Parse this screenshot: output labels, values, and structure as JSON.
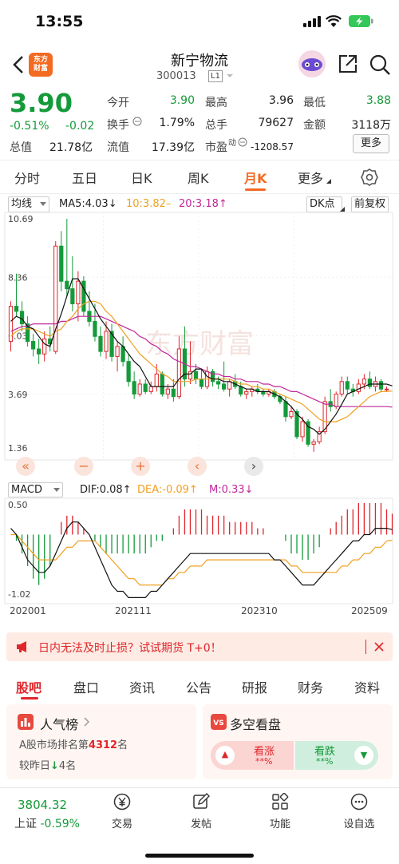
{
  "status_bar": {
    "time": "13:55"
  },
  "header": {
    "logo_line1": "东方",
    "logo_line2": "财富",
    "stock_name": "新宁物流",
    "stock_code": "300013",
    "level_badge": "L1"
  },
  "quote": {
    "price": "3.90",
    "change_pct": "-0.51%",
    "change_abs": "-0.02",
    "open_label": "今开",
    "open_value": "3.90",
    "high_label": "最高",
    "high_value": "3.96",
    "low_label": "最低",
    "low_value": "3.88",
    "turnover_label": "换手",
    "turnover_value": "1.79%",
    "volume_label": "总手",
    "volume_value": "79627",
    "amount_label": "金额",
    "amount_value": "3118万",
    "mktcap_label": "总值",
    "mktcap_value": "21.78亿",
    "float_label": "流值",
    "float_value": "17.39亿",
    "pe_label": "市盈",
    "pe_sup": "动",
    "pe_value": "-1208.57",
    "more_label": "更多"
  },
  "period_tabs": [
    "分时",
    "五日",
    "日K",
    "周K",
    "月K",
    "更多"
  ],
  "active_period": "月K",
  "chart_toolbar": {
    "indicator": "均线",
    "ma5": "MA5:4.03",
    "ma10": "10:3.82",
    "ma20": "20:3.18",
    "dk_label": "DK点",
    "adjust_label": "前复权"
  },
  "kline": {
    "y_labels": [
      "10.69",
      "8.36",
      "6.03",
      "3.69",
      "1.36"
    ],
    "watermark": "东方财富"
  },
  "macd_toolbar": {
    "indicator": "MACD",
    "dif": "DIF:0.08",
    "dea": "DEA:-0.09",
    "m": "M:0.33",
    "y_top": "0.50",
    "y_bottom": "-1.02"
  },
  "x_labels": [
    "202001",
    "202111",
    "202310",
    "202509"
  ],
  "colors": {
    "up": "#e0262b",
    "down": "#149a3a",
    "accent": "#f36a21",
    "ma5": "#111111",
    "ma10": "#f0a020",
    "ma20": "#c0279a"
  },
  "chart_data": {
    "type": "candlestick",
    "period": "monthly",
    "y_range": [
      1.36,
      10.69
    ],
    "x_tick_labels": [
      "202001",
      "202111",
      "202310",
      "202509"
    ],
    "candles": [
      {
        "o": 5.8,
        "h": 7.4,
        "l": 5.4,
        "c": 7.2
      },
      {
        "o": 7.2,
        "h": 8.5,
        "l": 6.8,
        "c": 7.0
      },
      {
        "o": 7.0,
        "h": 7.4,
        "l": 6.2,
        "c": 6.5
      },
      {
        "o": 6.5,
        "h": 6.8,
        "l": 5.6,
        "c": 5.8
      },
      {
        "o": 5.8,
        "h": 6.1,
        "l": 5.2,
        "c": 5.5
      },
      {
        "o": 5.5,
        "h": 5.9,
        "l": 4.9,
        "c": 5.3
      },
      {
        "o": 5.3,
        "h": 6.2,
        "l": 5.0,
        "c": 5.9
      },
      {
        "o": 5.9,
        "h": 6.4,
        "l": 5.4,
        "c": 5.7
      },
      {
        "o": 5.4,
        "h": 9.8,
        "l": 5.3,
        "c": 9.6
      },
      {
        "o": 9.6,
        "h": 10.2,
        "l": 7.8,
        "c": 8.2
      },
      {
        "o": 8.2,
        "h": 10.69,
        "l": 7.6,
        "c": 7.9
      },
      {
        "o": 7.9,
        "h": 9.2,
        "l": 7.0,
        "c": 7.3
      },
      {
        "o": 7.3,
        "h": 8.6,
        "l": 6.6,
        "c": 8.2
      },
      {
        "o": 8.2,
        "h": 8.4,
        "l": 6.8,
        "c": 7.0
      },
      {
        "o": 7.0,
        "h": 7.8,
        "l": 6.4,
        "c": 6.6
      },
      {
        "o": 6.6,
        "h": 7.3,
        "l": 5.8,
        "c": 6.0
      },
      {
        "o": 6.0,
        "h": 6.4,
        "l": 5.2,
        "c": 5.4
      },
      {
        "o": 5.4,
        "h": 6.6,
        "l": 5.1,
        "c": 6.2
      },
      {
        "o": 6.2,
        "h": 6.5,
        "l": 5.0,
        "c": 5.2
      },
      {
        "o": 5.2,
        "h": 5.8,
        "l": 4.6,
        "c": 5.6
      },
      {
        "o": 5.6,
        "h": 6.0,
        "l": 4.8,
        "c": 5.0
      },
      {
        "o": 5.0,
        "h": 5.3,
        "l": 4.0,
        "c": 4.2
      },
      {
        "o": 4.2,
        "h": 4.6,
        "l": 3.5,
        "c": 3.7
      },
      {
        "o": 3.7,
        "h": 4.3,
        "l": 3.6,
        "c": 4.1
      },
      {
        "o": 4.1,
        "h": 4.3,
        "l": 3.7,
        "c": 3.8
      },
      {
        "o": 3.8,
        "h": 4.2,
        "l": 3.7,
        "c": 4.0
      },
      {
        "o": 4.0,
        "h": 4.9,
        "l": 3.8,
        "c": 4.5
      },
      {
        "o": 4.5,
        "h": 4.6,
        "l": 3.6,
        "c": 3.7
      },
      {
        "o": 3.7,
        "h": 4.1,
        "l": 3.5,
        "c": 3.9
      },
      {
        "o": 3.9,
        "h": 4.3,
        "l": 3.4,
        "c": 3.6
      },
      {
        "o": 3.6,
        "h": 6.0,
        "l": 3.5,
        "c": 5.5
      },
      {
        "o": 5.5,
        "h": 6.4,
        "l": 4.0,
        "c": 4.3
      },
      {
        "o": 4.3,
        "h": 5.8,
        "l": 4.1,
        "c": 4.6
      },
      {
        "o": 4.6,
        "h": 4.9,
        "l": 4.1,
        "c": 4.3
      },
      {
        "o": 4.3,
        "h": 4.7,
        "l": 3.9,
        "c": 4.0
      },
      {
        "o": 4.0,
        "h": 4.8,
        "l": 3.9,
        "c": 4.6
      },
      {
        "o": 4.6,
        "h": 4.7,
        "l": 4.0,
        "c": 4.2
      },
      {
        "o": 4.2,
        "h": 4.4,
        "l": 3.9,
        "c": 4.1
      },
      {
        "o": 4.1,
        "h": 5.0,
        "l": 3.8,
        "c": 3.9
      },
      {
        "o": 3.9,
        "h": 4.3,
        "l": 3.6,
        "c": 4.2
      },
      {
        "o": 4.2,
        "h": 4.5,
        "l": 3.9,
        "c": 4.0
      },
      {
        "o": 4.0,
        "h": 4.2,
        "l": 3.6,
        "c": 3.7
      },
      {
        "o": 3.7,
        "h": 3.9,
        "l": 3.5,
        "c": 3.8
      },
      {
        "o": 3.8,
        "h": 4.0,
        "l": 3.6,
        "c": 3.9
      },
      {
        "o": 3.9,
        "h": 4.1,
        "l": 3.7,
        "c": 3.8
      },
      {
        "o": 3.8,
        "h": 3.9,
        "l": 3.6,
        "c": 3.7
      },
      {
        "o": 3.7,
        "h": 3.9,
        "l": 3.6,
        "c": 3.8
      },
      {
        "o": 3.8,
        "h": 3.9,
        "l": 3.5,
        "c": 3.6
      },
      {
        "o": 3.6,
        "h": 3.7,
        "l": 3.3,
        "c": 3.4
      },
      {
        "o": 3.4,
        "h": 3.6,
        "l": 2.6,
        "c": 2.8
      },
      {
        "o": 2.8,
        "h": 3.2,
        "l": 2.7,
        "c": 3.0
      },
      {
        "o": 3.0,
        "h": 3.1,
        "l": 1.9,
        "c": 2.0
      },
      {
        "o": 2.0,
        "h": 2.8,
        "l": 1.8,
        "c": 2.6
      },
      {
        "o": 2.6,
        "h": 2.7,
        "l": 1.6,
        "c": 1.7
      },
      {
        "o": 1.7,
        "h": 1.9,
        "l": 1.4,
        "c": 1.8
      },
      {
        "o": 1.8,
        "h": 2.4,
        "l": 1.7,
        "c": 2.2
      },
      {
        "o": 2.2,
        "h": 3.6,
        "l": 2.1,
        "c": 3.4
      },
      {
        "o": 3.4,
        "h": 3.9,
        "l": 3.0,
        "c": 3.2
      },
      {
        "o": 3.2,
        "h": 3.8,
        "l": 3.1,
        "c": 3.7
      },
      {
        "o": 3.7,
        "h": 4.4,
        "l": 3.6,
        "c": 4.2
      },
      {
        "o": 4.2,
        "h": 4.4,
        "l": 3.7,
        "c": 3.9
      },
      {
        "o": 3.9,
        "h": 4.1,
        "l": 3.6,
        "c": 3.8
      },
      {
        "o": 3.8,
        "h": 4.3,
        "l": 3.7,
        "c": 4.1
      },
      {
        "o": 4.1,
        "h": 4.5,
        "l": 3.9,
        "c": 4.3
      },
      {
        "o": 4.3,
        "h": 4.6,
        "l": 3.9,
        "c": 4.0
      },
      {
        "o": 4.0,
        "h": 4.4,
        "l": 3.8,
        "c": 4.2
      },
      {
        "o": 4.2,
        "h": 4.3,
        "l": 3.8,
        "c": 3.9
      },
      {
        "o": 3.9,
        "h": 4.0,
        "l": 3.8,
        "c": 3.9
      }
    ],
    "ma5": [
      6.6,
      6.8,
      6.7,
      6.4,
      6.3,
      6.0,
      5.7,
      5.6,
      6.3,
      6.9,
      7.6,
      8.3,
      8.3,
      7.9,
      7.5,
      7.1,
      6.7,
      6.4,
      6.1,
      5.8,
      5.6,
      5.3,
      5.0,
      4.8,
      4.4,
      4.0,
      4.0,
      4.0,
      4.0,
      4.0,
      4.3,
      4.5,
      4.5,
      4.7,
      4.7,
      4.4,
      4.3,
      4.3,
      4.2,
      4.2,
      4.1,
      4.0,
      3.9,
      3.9,
      3.8,
      3.8,
      3.8,
      3.7,
      3.6,
      3.4,
      3.2,
      2.9,
      2.7,
      2.4,
      2.3,
      2.1,
      2.3,
      2.6,
      2.9,
      3.3,
      3.7,
      3.8,
      3.9,
      4.0,
      4.1,
      4.1,
      4.1,
      4.1,
      4.03
    ],
    "ma10": [
      6.0,
      6.2,
      6.3,
      6.3,
      6.3,
      6.2,
      6.1,
      6.0,
      6.2,
      6.3,
      6.6,
      6.8,
      7.1,
      7.3,
      7.4,
      7.4,
      7.3,
      7.0,
      6.8,
      6.5,
      6.2,
      5.9,
      5.6,
      5.3,
      5.1,
      4.9,
      4.7,
      4.5,
      4.4,
      4.2,
      4.2,
      4.2,
      4.2,
      4.3,
      4.3,
      4.3,
      4.3,
      4.3,
      4.3,
      4.3,
      4.2,
      4.1,
      4.1,
      4.0,
      4.0,
      3.9,
      3.9,
      3.8,
      3.7,
      3.6,
      3.5,
      3.4,
      3.3,
      3.1,
      2.9,
      2.7,
      2.6,
      2.6,
      2.6,
      2.7,
      2.8,
      3.0,
      3.2,
      3.4,
      3.6,
      3.7,
      3.8,
      3.8,
      3.82
    ],
    "ma20": [
      6.2,
      6.3,
      6.4,
      6.4,
      6.5,
      6.5,
      6.5,
      6.5,
      6.5,
      6.6,
      6.6,
      6.7,
      6.8,
      6.8,
      6.8,
      6.8,
      6.8,
      6.7,
      6.6,
      6.5,
      6.4,
      6.3,
      6.2,
      6.0,
      5.9,
      5.7,
      5.6,
      5.4,
      5.3,
      5.1,
      5.0,
      4.9,
      4.8,
      4.8,
      4.7,
      4.6,
      4.5,
      4.5,
      4.4,
      4.4,
      4.3,
      4.3,
      4.2,
      4.2,
      4.2,
      4.1,
      4.1,
      4.0,
      4.0,
      3.9,
      3.8,
      3.8,
      3.7,
      3.6,
      3.5,
      3.4,
      3.3,
      3.3,
      3.2,
      3.2,
      3.2,
      3.2,
      3.2,
      3.2,
      3.2,
      3.2,
      3.2,
      3.2,
      3.18
    ],
    "macd_range": [
      -1.02,
      0.5
    ],
    "macd_hist": [
      0.0,
      -0.1,
      -0.3,
      -0.5,
      -0.7,
      -0.8,
      -0.7,
      -0.5,
      0.0,
      0.2,
      0.3,
      0.3,
      0.2,
      0.1,
      0.0,
      -0.1,
      -0.2,
      -0.3,
      -0.3,
      -0.3,
      -0.3,
      -0.3,
      -0.3,
      -0.3,
      -0.3,
      -0.2,
      -0.1,
      -0.1,
      0.0,
      0.1,
      0.3,
      0.4,
      0.4,
      0.4,
      0.4,
      0.3,
      0.3,
      0.3,
      0.3,
      0.2,
      0.2,
      0.2,
      0.2,
      0.2,
      0.1,
      0.1,
      0.0,
      0.0,
      0.0,
      -0.1,
      -0.3,
      -0.3,
      -0.4,
      -0.4,
      -0.3,
      -0.2,
      0.0,
      0.1,
      0.2,
      0.3,
      0.4,
      0.4,
      0.5,
      0.5,
      0.5,
      0.5,
      0.5,
      0.4,
      0.33
    ],
    "dif": [
      0.1,
      0.0,
      -0.2,
      -0.4,
      -0.5,
      -0.6,
      -0.6,
      -0.5,
      -0.3,
      -0.1,
      0.1,
      0.2,
      0.2,
      0.1,
      0.0,
      -0.2,
      -0.4,
      -0.6,
      -0.8,
      -0.9,
      -0.9,
      -1.0,
      -1.0,
      -1.0,
      -1.0,
      -0.9,
      -0.9,
      -0.8,
      -0.7,
      -0.6,
      -0.5,
      -0.4,
      -0.3,
      -0.3,
      -0.3,
      -0.3,
      -0.3,
      -0.3,
      -0.3,
      -0.3,
      -0.3,
      -0.3,
      -0.3,
      -0.3,
      -0.3,
      -0.3,
      -0.3,
      -0.4,
      -0.4,
      -0.5,
      -0.6,
      -0.7,
      -0.8,
      -0.8,
      -0.8,
      -0.7,
      -0.6,
      -0.5,
      -0.4,
      -0.3,
      -0.2,
      -0.1,
      -0.1,
      0.0,
      0.0,
      0.1,
      0.1,
      0.1,
      0.08
    ],
    "dea": [
      0.0,
      0.0,
      -0.1,
      -0.2,
      -0.3,
      -0.4,
      -0.4,
      -0.4,
      -0.4,
      -0.3,
      -0.2,
      -0.2,
      -0.1,
      -0.1,
      -0.1,
      -0.1,
      -0.2,
      -0.3,
      -0.4,
      -0.5,
      -0.6,
      -0.7,
      -0.7,
      -0.8,
      -0.8,
      -0.8,
      -0.8,
      -0.8,
      -0.7,
      -0.7,
      -0.6,
      -0.6,
      -0.5,
      -0.5,
      -0.5,
      -0.4,
      -0.4,
      -0.4,
      -0.4,
      -0.4,
      -0.4,
      -0.4,
      -0.4,
      -0.4,
      -0.4,
      -0.4,
      -0.4,
      -0.4,
      -0.4,
      -0.4,
      -0.5,
      -0.5,
      -0.6,
      -0.6,
      -0.6,
      -0.6,
      -0.6,
      -0.6,
      -0.6,
      -0.5,
      -0.5,
      -0.4,
      -0.4,
      -0.3,
      -0.3,
      -0.2,
      -0.2,
      -0.1,
      -0.09
    ]
  },
  "promo": {
    "text": "日内无法及时止损？试试期货 T+0！"
  },
  "content_tabs": [
    "股吧",
    "盘口",
    "资讯",
    "公告",
    "研报",
    "财务",
    "资料"
  ],
  "active_content_tab": "股吧",
  "popularity_card": {
    "title": "人气榜",
    "rank_prefix": "A股市场排名第",
    "rank_value": "4312",
    "rank_suffix": "名",
    "change_prefix": "较昨日",
    "change_arrow": "↓",
    "change_value": "4名"
  },
  "sentiment_card": {
    "title": "多空看盘",
    "bull_label": "看涨",
    "bull_value": "**%",
    "bear_label": "看跌",
    "bear_value": "**%"
  },
  "bottom_nav": {
    "index_value": "3804.32",
    "index_name": "上证",
    "index_change": "-0.59%",
    "items": [
      "交易",
      "发帖",
      "功能",
      "设自选"
    ]
  }
}
